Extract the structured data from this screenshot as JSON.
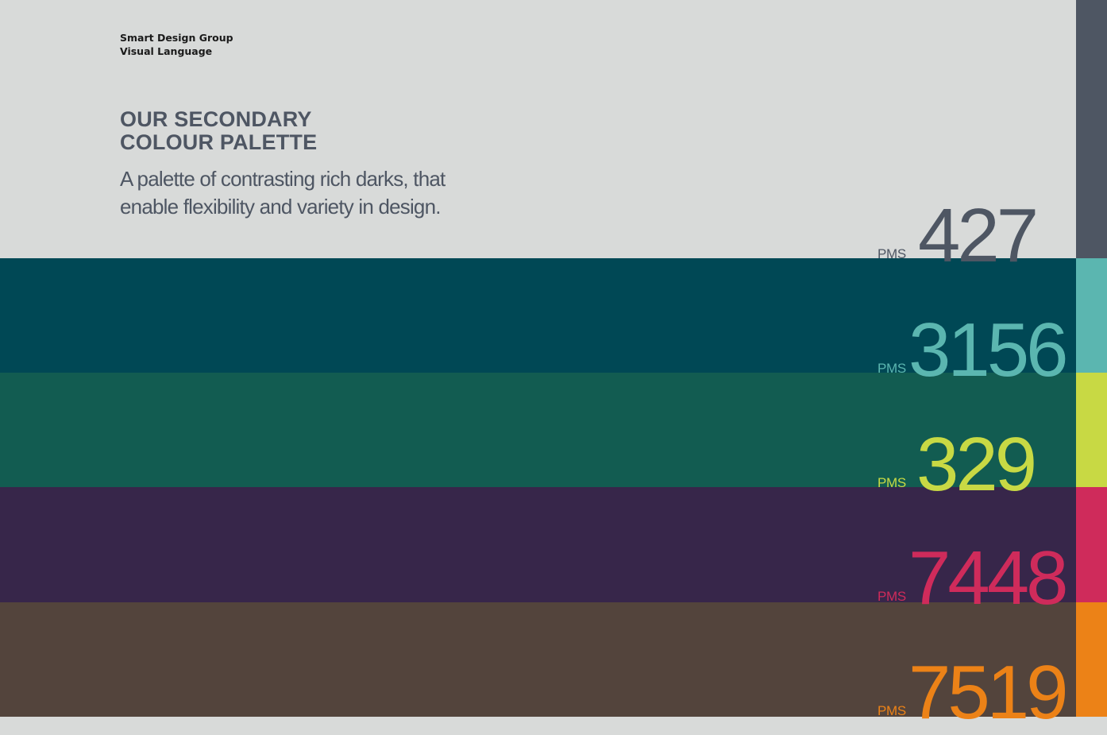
{
  "header": {
    "company": "Smart Design Group",
    "section": "Visual Language"
  },
  "title": {
    "line1": "OUR SECONDARY",
    "line2": "COLOUR PALETTE"
  },
  "description": "A palette of contrasting rich darks, that enable flexibility and variety in design.",
  "swatches": [
    {
      "prefix": "PMS",
      "number": "427",
      "band_color": "#d8dad9",
      "accent_color": "#4e5663"
    },
    {
      "prefix": "PMS",
      "number": "3156",
      "band_color": "#004855",
      "accent_color": "#5bb6b0"
    },
    {
      "prefix": "PMS",
      "number": "329",
      "band_color": "#125c51",
      "accent_color": "#c8d944"
    },
    {
      "prefix": "PMS",
      "number": "7448",
      "band_color": "#37264a",
      "accent_color": "#cf2b5b"
    },
    {
      "prefix": "PMS",
      "number": "7519",
      "band_color": "#53443c",
      "accent_color": "#ec8217"
    }
  ]
}
